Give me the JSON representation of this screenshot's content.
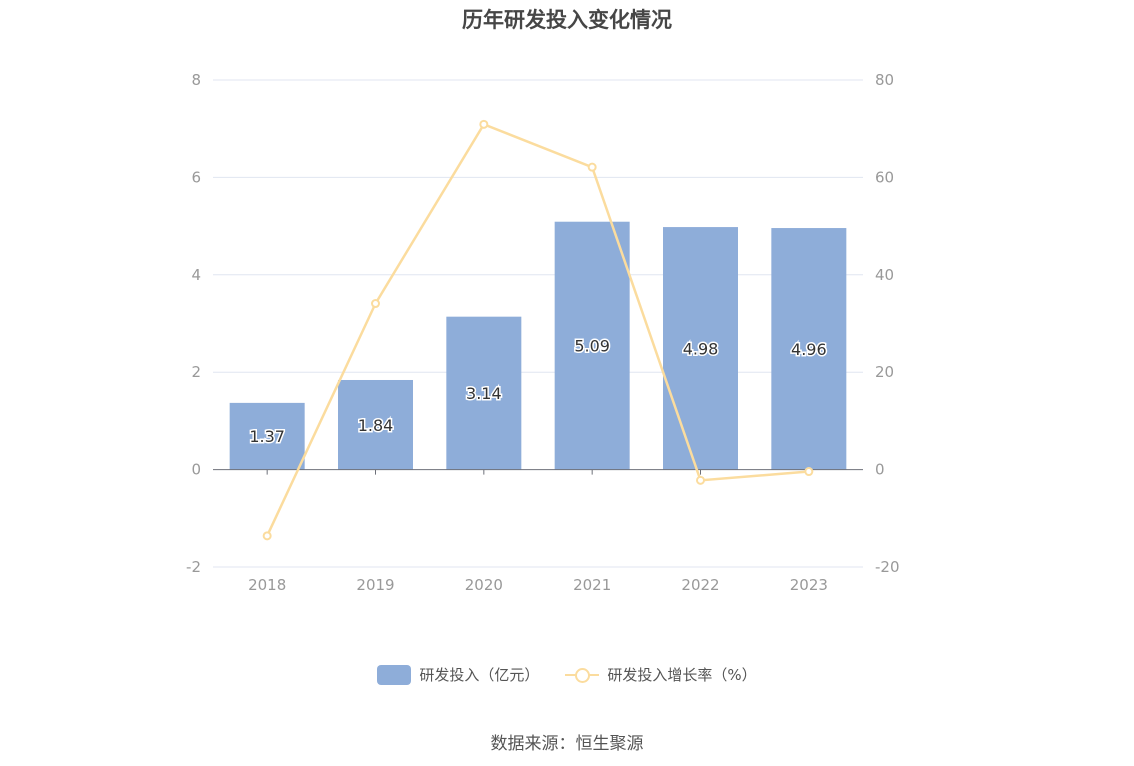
{
  "chart_data": {
    "type": "bar",
    "title": "历年研发投入变化情况",
    "categories": [
      "2018",
      "2019",
      "2020",
      "2021",
      "2022",
      "2023"
    ],
    "series": [
      {
        "name": "研发投入（亿元）",
        "type": "bar",
        "axis": "left",
        "values": [
          1.37,
          1.84,
          3.14,
          5.09,
          4.98,
          4.96
        ],
        "color": "#8eadd9"
      },
      {
        "name": "研发投入增长率（%）",
        "type": "line",
        "axis": "right",
        "values": [
          -13.6,
          34.1,
          70.9,
          62.1,
          -2.2,
          -0.4
        ],
        "color": "#fbdc9e"
      }
    ],
    "y_left": {
      "min": -2,
      "max": 8,
      "ticks": [
        -2,
        0,
        2,
        4,
        6,
        8
      ]
    },
    "y_right": {
      "min": -20,
      "max": 80,
      "ticks": [
        -20,
        0,
        20,
        40,
        60,
        80
      ]
    },
    "grid": true,
    "legend_position": "bottom"
  },
  "source": "数据来源：恒生聚源"
}
